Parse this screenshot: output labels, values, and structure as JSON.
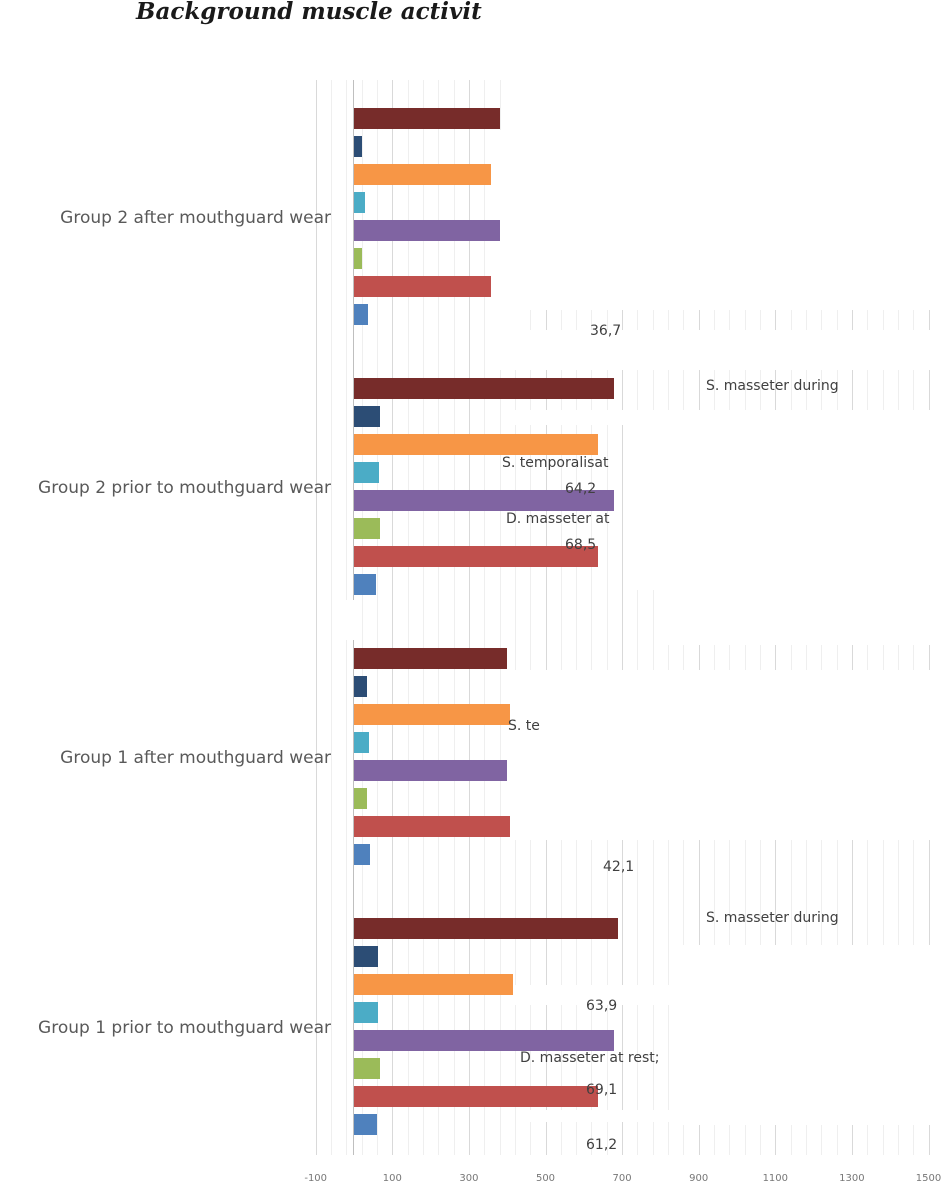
{
  "chart_data": {
    "type": "bar",
    "orientation": "horizontal",
    "title": "Background muscle activit",
    "categories": [
      "Group 1 prior to mouthguard wear",
      "Group 1 after mouthguard wear",
      "Group 2 prior to mouthguard wear",
      "Group 2 after mouthguard wear"
    ],
    "series": [
      {
        "color": "#4f81bd",
        "values": [
          61.2,
          42.1,
          58,
          36.7
        ]
      },
      {
        "color": "#c0504d",
        "values": [
          637,
          415,
          637,
          358
        ]
      },
      {
        "color": "#9bbb59",
        "values": [
          69.1,
          34,
          68.5,
          21
        ]
      },
      {
        "color": "#8064a2",
        "values": [
          679,
          400,
          679,
          386
        ]
      },
      {
        "color": "#4bacc6",
        "values": [
          63.9,
          39,
          64.2,
          29
        ]
      },
      {
        "color": "#f79646",
        "values": [
          415,
          483,
          637,
          358
        ]
      },
      {
        "color": "#2c4d75",
        "values": [
          63,
          34,
          68,
          21
        ]
      },
      {
        "color": "#772c2a",
        "values": [
          690.4,
          400,
          679.6,
          381
        ]
      }
    ],
    "xticks": [
      "-100",
      "100",
      "300",
      "500",
      "700",
      "900",
      "1100",
      "1300",
      "1500"
    ],
    "xtick_values": [
      -100,
      100,
      300,
      500,
      700,
      900,
      1100,
      1300,
      1500
    ],
    "xlim": [
      -100,
      1500
    ],
    "grid": true,
    "data_labels": [
      {
        "text": "S.      masseter      during",
        "category": 0
      },
      {
        "text": "D. masseter at rest;",
        "category": 0
      },
      {
        "text": "69,1",
        "category": 0
      },
      {
        "text": "63,9",
        "category": 0
      },
      {
        "text": "61,2",
        "category": 0
      },
      {
        "text": "42,1",
        "category": 1
      },
      {
        "text": "S. te",
        "category": 1
      },
      {
        "text": "S.      masseter      during",
        "category": 2
      },
      {
        "text": "S. temporalisat",
        "category": 2
      },
      {
        "text": "64,2",
        "category": 2
      },
      {
        "text": "D. masseter at",
        "category": 2
      },
      {
        "text": "68,5",
        "category": 2
      },
      {
        "text": "36,7",
        "category": 3
      }
    ]
  }
}
